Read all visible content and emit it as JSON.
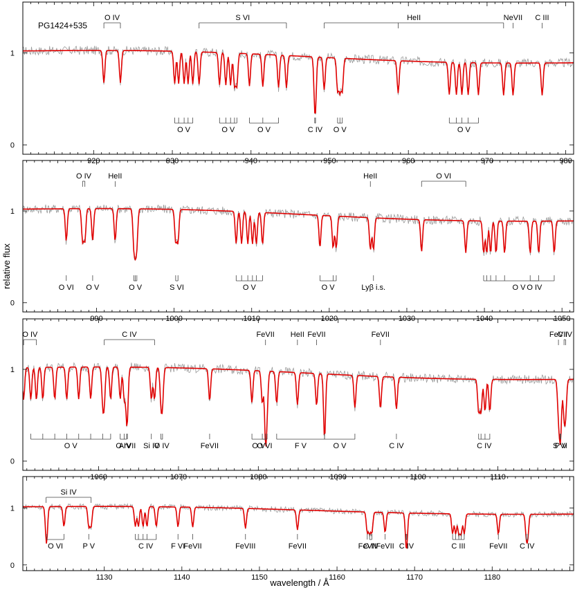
{
  "figure": {
    "ylabel": "relative flux",
    "xlabel": "wavelength / Å",
    "star_label": "PG1424+535"
  },
  "chart_data": [
    {
      "type": "line",
      "xlim": [
        911,
        981
      ],
      "ylim": [
        -0.1,
        1.55
      ],
      "xticks": [
        920,
        930,
        940,
        950,
        960,
        970,
        980
      ],
      "yticks": [
        0,
        1
      ],
      "series": [
        {
          "role": "observed",
          "color": "#999999"
        },
        {
          "role": "model",
          "color": "#e00000"
        }
      ],
      "lines": [
        {
          "label": "O IV",
          "wl": [
            921.3,
            923.4
          ],
          "pos": "top"
        },
        {
          "label": "S VI",
          "wl": [
            933.4,
            944.5
          ],
          "pos": "top"
        },
        {
          "label": "HeII",
          "wl": [
            949.3,
            958.7,
            972.1
          ],
          "pos": "top"
        },
        {
          "label": "NeVII",
          "wl": [
            973.3
          ],
          "pos": "top"
        },
        {
          "label": "C III",
          "wl": [
            977.0
          ],
          "pos": "top"
        },
        {
          "label": "O V",
          "wl": [
            930.3,
            930.8,
            931.5,
            932.0,
            932.6
          ],
          "pos": "bottom"
        },
        {
          "label": "O V",
          "wl": [
            936.0,
            936.8,
            937.4,
            937.9,
            938.2
          ],
          "pos": "bottom"
        },
        {
          "label": "O V",
          "wl": [
            939.8,
            941.5,
            943.5
          ],
          "pos": "bottom"
        },
        {
          "label": "C IV",
          "wl": [
            948.1,
            948.2
          ],
          "pos": "bottom"
        },
        {
          "label": "O V",
          "wl": [
            951.0,
            951.3,
            951.6
          ],
          "pos": "bottom"
        },
        {
          "label": "O V",
          "wl": [
            965.2,
            966.1,
            966.8,
            967.6,
            968.9
          ],
          "pos": "bottom"
        }
      ]
    },
    {
      "type": "line",
      "xlim": [
        980.5,
        1051.5
      ],
      "ylim": [
        -0.1,
        1.55
      ],
      "xticks": [
        990,
        1000,
        1010,
        1020,
        1030,
        1040,
        1050
      ],
      "yticks": [
        0,
        1
      ],
      "series": [
        {
          "role": "observed",
          "color": "#999999"
        },
        {
          "role": "model",
          "color": "#e00000"
        }
      ],
      "lines": [
        {
          "label": "O IV",
          "wl": [
            988.2,
            988.5
          ],
          "pos": "top"
        },
        {
          "label": "HeII",
          "wl": [
            992.4
          ],
          "pos": "top"
        },
        {
          "label": "HeII",
          "wl": [
            1025.3
          ],
          "pos": "top"
        },
        {
          "label": "O VI",
          "wl": [
            1031.9,
            1037.6
          ],
          "pos": "top"
        },
        {
          "label": "O VI",
          "wl": [
            986.1
          ],
          "pos": "bottom"
        },
        {
          "label": "O V",
          "wl": [
            989.5
          ],
          "pos": "bottom"
        },
        {
          "label": "O V",
          "wl": [
            994.8,
            995.0,
            995.2
          ],
          "pos": "bottom"
        },
        {
          "label": "S VI",
          "wl": [
            1000.2,
            1000.5
          ],
          "pos": "bottom"
        },
        {
          "label": "O V",
          "wl": [
            1008.0,
            1008.7,
            1009.5,
            1010.1,
            1010.6,
            1011.4
          ],
          "pos": "bottom"
        },
        {
          "label": "O V",
          "wl": [
            1018.8,
            1020.5,
            1020.9
          ],
          "pos": "bottom"
        },
        {
          "label": "Lyβ i.s.",
          "wl": [
            1025.7
          ],
          "pos": "bottom"
        },
        {
          "label": "O IV",
          "wl": [
            1045.9,
            1047.0
          ],
          "pos": "bottom"
        },
        {
          "label": "O V",
          "wl": [
            1039.9,
            1040.3,
            1040.8,
            1041.5,
            1042.6,
            1049.0
          ],
          "pos": "bottom"
        }
      ]
    },
    {
      "type": "line",
      "xlim": [
        1050.5,
        1119.5
      ],
      "ylim": [
        -0.1,
        1.55
      ],
      "xticks": [
        1060,
        1070,
        1080,
        1090,
        1100,
        1110
      ],
      "yticks": [
        0,
        1
      ],
      "series": [
        {
          "role": "observed",
          "color": "#999999"
        },
        {
          "role": "model",
          "color": "#e00000"
        }
      ],
      "lines": [
        {
          "label": "O IV",
          "wl": [
            1050.6,
            1052.2
          ],
          "pos": "top"
        },
        {
          "label": "C IV",
          "wl": [
            1060.7,
            1067.0
          ],
          "pos": "top"
        },
        {
          "label": "FeVII",
          "wl": [
            1080.9
          ],
          "pos": "top"
        },
        {
          "label": "HeII",
          "wl": [
            1084.9
          ],
          "pos": "top"
        },
        {
          "label": "FeVII",
          "wl": [
            1087.3
          ],
          "pos": "top"
        },
        {
          "label": "FeVII",
          "wl": [
            1095.3
          ],
          "pos": "top"
        },
        {
          "label": "C IV",
          "wl": [
            1118.3,
            1118.5
          ],
          "pos": "top"
        },
        {
          "label": "FeVII",
          "wl": [
            1117.6
          ],
          "pos": "top"
        },
        {
          "label": "O V",
          "wl": [
            1051.5,
            1053.0,
            1054.5,
            1056.0,
            1057.5,
            1059.0,
            1060.5,
            1061.5
          ],
          "pos": "bottom"
        },
        {
          "label": "O IV",
          "wl": [
            1062.7,
            1063.2,
            1063.5
          ],
          "pos": "bottom"
        },
        {
          "label": "ArVII",
          "wl": [
            1063.6
          ],
          "pos": "bottom"
        },
        {
          "label": "Si IV",
          "wl": [
            1066.6
          ],
          "pos": "bottom"
        },
        {
          "label": "O IV",
          "wl": [
            1067.8,
            1068.0
          ],
          "pos": "bottom"
        },
        {
          "label": "FeVII",
          "wl": [
            1073.9
          ],
          "pos": "bottom"
        },
        {
          "label": "O V",
          "wl": [
            1079.2,
            1080.9
          ],
          "pos": "bottom"
        },
        {
          "label": "O VI",
          "wl": [
            1080.5,
            1081.1
          ],
          "pos": "bottom"
        },
        {
          "label": "F V",
          "wl": [
            1082.3,
            1088.3
          ],
          "pos": "bottom"
        },
        {
          "label": "O V",
          "wl": [
            1088.3,
            1092.1
          ],
          "pos": "bottom"
        },
        {
          "label": "C IV",
          "wl": [
            1097.3
          ],
          "pos": "bottom"
        },
        {
          "label": "C IV",
          "wl": [
            1107.6,
            1107.9,
            1108.4,
            1109.0
          ],
          "pos": "bottom"
        },
        {
          "label": "S VI",
          "wl": [
            1117.8
          ],
          "pos": "bottom"
        },
        {
          "label": "P V",
          "wl": [
            1117.9
          ],
          "pos": "bottom"
        }
      ]
    },
    {
      "type": "line",
      "xlim": [
        1119.5,
        1190.5
      ],
      "ylim": [
        -0.1,
        1.55
      ],
      "xticks": [
        1130,
        1140,
        1150,
        1160,
        1170,
        1180
      ],
      "yticks": [
        0,
        1
      ],
      "series": [
        {
          "role": "observed",
          "color": "#999999"
        },
        {
          "role": "model",
          "color": "#e00000"
        }
      ],
      "lines": [
        {
          "label": "Si IV",
          "wl": [
            1122.5,
            1128.3
          ],
          "pos": "top"
        },
        {
          "label": "O VI",
          "wl": [
            1122.6,
            1124.8
          ],
          "pos": "bottom"
        },
        {
          "label": "P V",
          "wl": [
            1128.0
          ],
          "pos": "bottom"
        },
        {
          "label": "C IV",
          "wl": [
            1134.0,
            1134.4,
            1135.0,
            1135.5,
            1136.7
          ],
          "pos": "bottom"
        },
        {
          "label": "FeVII",
          "wl": [
            1141.4
          ],
          "pos": "bottom"
        },
        {
          "label": "F VI",
          "wl": [
            1139.5
          ],
          "pos": "bottom"
        },
        {
          "label": "FeVIII",
          "wl": [
            1148.2
          ],
          "pos": "bottom"
        },
        {
          "label": "FeVII",
          "wl": [
            1154.9
          ],
          "pos": "bottom"
        },
        {
          "label": "FeVII",
          "wl": [
            1163.9
          ],
          "pos": "bottom"
        },
        {
          "label": "FeVII",
          "wl": [
            1166.2
          ],
          "pos": "bottom"
        },
        {
          "label": "O IV",
          "wl": [
            1164.2,
            1164.5
          ],
          "pos": "bottom"
        },
        {
          "label": "C IV",
          "wl": [
            1168.9,
            1169.0
          ],
          "pos": "bottom"
        },
        {
          "label": "C III",
          "wl": [
            1174.9,
            1175.3,
            1175.7,
            1176.0,
            1176.4
          ],
          "pos": "bottom"
        },
        {
          "label": "FeVII",
          "wl": [
            1180.8
          ],
          "pos": "bottom"
        },
        {
          "label": "C IV",
          "wl": [
            1184.4,
            1184.6
          ],
          "pos": "bottom"
        }
      ]
    }
  ]
}
